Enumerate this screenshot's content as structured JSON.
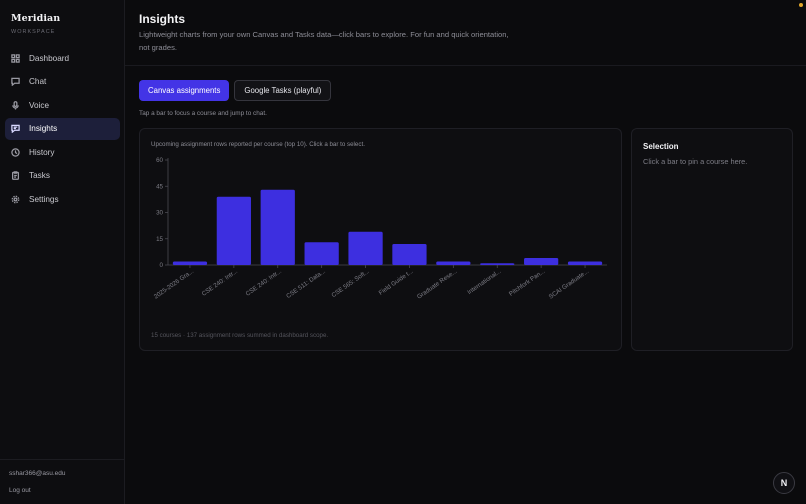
{
  "brand": {
    "name": "Meridian",
    "sub": "WORKSPACE"
  },
  "sidebar": {
    "items": [
      {
        "label": "Dashboard",
        "icon": "grid-icon",
        "active": false
      },
      {
        "label": "Chat",
        "icon": "chat-icon",
        "active": false
      },
      {
        "label": "Voice",
        "icon": "mic-icon",
        "active": false
      },
      {
        "label": "Insights",
        "icon": "insights-icon",
        "active": true
      },
      {
        "label": "History",
        "icon": "clock-icon",
        "active": false
      },
      {
        "label": "Tasks",
        "icon": "clipboard-icon",
        "active": false
      },
      {
        "label": "Settings",
        "icon": "gear-icon",
        "active": false
      }
    ],
    "email": "sshar366@asu.edu",
    "logout": "Log out"
  },
  "header": {
    "title": "Insights",
    "description": "Lightweight charts from your own Canvas and Tasks data—click bars to explore. For fun and quick orientation, not grades."
  },
  "tabs": [
    {
      "label": "Canvas assignments",
      "active": true
    },
    {
      "label": "Google Tasks (playful)",
      "active": false
    }
  ],
  "hint": "Tap a bar to focus a course and jump to chat.",
  "chart": {
    "caption": "Upcoming assignment rows reported per course (top 10). Click a bar to select.",
    "footer": "15 courses · 137 assignment rows summed in dashboard scope."
  },
  "selection": {
    "title": "Selection",
    "hint": "Click a bar to pin a course here."
  },
  "fab": {
    "label": "N"
  },
  "colors": {
    "accent": "#4334e6",
    "bar": "#3d2fe0",
    "background": "#0b0b0d"
  },
  "chart_data": {
    "type": "bar",
    "categories": [
      "2025-2026 Gra...",
      "CSE 240: Intr...",
      "CSE 240: Intr...",
      "CSE 511: Data...",
      "CSE 565: Soft...",
      "Field Guide t...",
      "Graduate Rese...",
      "International...",
      "Pitchfork Pan...",
      "SCAI Graduate..."
    ],
    "values": [
      2,
      39,
      43,
      13,
      19,
      12,
      2,
      1,
      4,
      2
    ],
    "ylim": [
      0,
      60
    ],
    "yticks": [
      0,
      15,
      30,
      45,
      60
    ],
    "ytick_labels": [
      "0",
      "15",
      "30",
      "45",
      "60"
    ],
    "grid": false,
    "legend": "none"
  }
}
